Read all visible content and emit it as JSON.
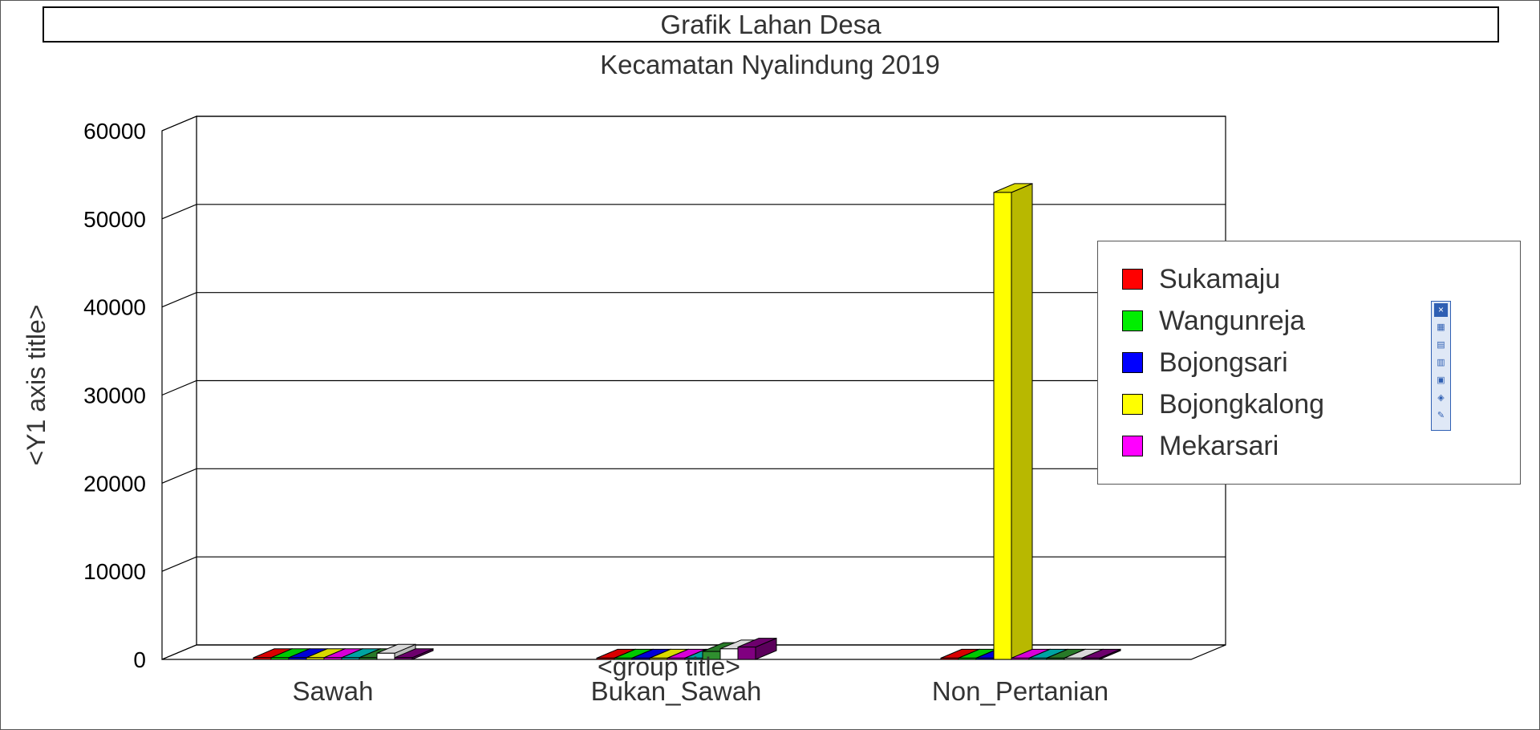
{
  "chart_data": {
    "type": "bar",
    "title": "Grafik Lahan Desa",
    "subtitle": "Kecamatan Nyalindung 2019",
    "ylabel": "<Y1 axis title>",
    "xlabel": "<group title>",
    "ylim": [
      0,
      60000
    ],
    "yticks": [
      "60000",
      "50000",
      "40000",
      "30000",
      "20000",
      "10000",
      "0"
    ],
    "categories": [
      "Sawah",
      "Bukan_Sawah",
      "Non_Pertanian"
    ],
    "series": [
      {
        "name": "Sukamaju",
        "color": "#ff0000",
        "values": [
          200,
          150,
          150
        ]
      },
      {
        "name": "Wangunreja",
        "color": "#00ee00",
        "values": [
          200,
          150,
          150
        ]
      },
      {
        "name": "Bojongsari",
        "color": "#0000ff",
        "values": [
          200,
          150,
          150
        ]
      },
      {
        "name": "Bojongkalong",
        "color": "#ffff00",
        "values": [
          200,
          150,
          53000
        ]
      },
      {
        "name": "Mekarsari",
        "color": "#ff00ff",
        "values": [
          200,
          150,
          150
        ]
      },
      {
        "color": "#00c0c0",
        "values": [
          200,
          150,
          150
        ]
      },
      {
        "color": "#2f8f2f",
        "values": [
          200,
          900,
          150
        ]
      },
      {
        "color": "#ffffff",
        "values": [
          700,
          1200,
          150
        ]
      },
      {
        "color": "#800080",
        "values": [
          200,
          1400,
          150
        ]
      }
    ],
    "legend_position": "right",
    "grid": true
  },
  "legend": {
    "items": [
      {
        "label": "Sukamaju",
        "color": "#ff0000"
      },
      {
        "label": "Wangunreja",
        "color": "#00ee00"
      },
      {
        "label": "Bojongsari",
        "color": "#0000ff"
      },
      {
        "label": "Bojongkalong",
        "color": "#ffff00"
      },
      {
        "label": "Mekarsari",
        "color": "#ff00ff"
      }
    ]
  },
  "toolbar": {
    "icons": [
      "close-icon",
      "properties-icon",
      "copy-icon",
      "paste-icon",
      "export-icon",
      "print-icon",
      "edit-icon"
    ]
  }
}
